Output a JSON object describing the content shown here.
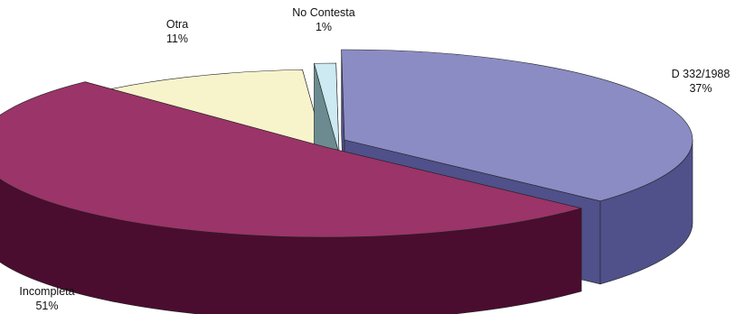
{
  "chart_data": {
    "type": "pie",
    "style": "3d-exploded",
    "slices": [
      {
        "label": "D 332/1988",
        "value": 37,
        "value_label": "37%",
        "top_color": "#8b8cc4",
        "side_color": "#50508a"
      },
      {
        "label": "Incompleta",
        "value": 51,
        "value_label": "51%",
        "top_color": "#9b3468",
        "side_color": "#4a0d2f"
      },
      {
        "label": "Otra",
        "value": 11,
        "value_label": "11%",
        "top_color": "#f7f4cc",
        "side_color": "#8b9274"
      },
      {
        "label": "No Contesta",
        "value": 1,
        "value_label": "1%",
        "top_color": "#cde9f2",
        "side_color": "#6b8b90"
      }
    ]
  }
}
